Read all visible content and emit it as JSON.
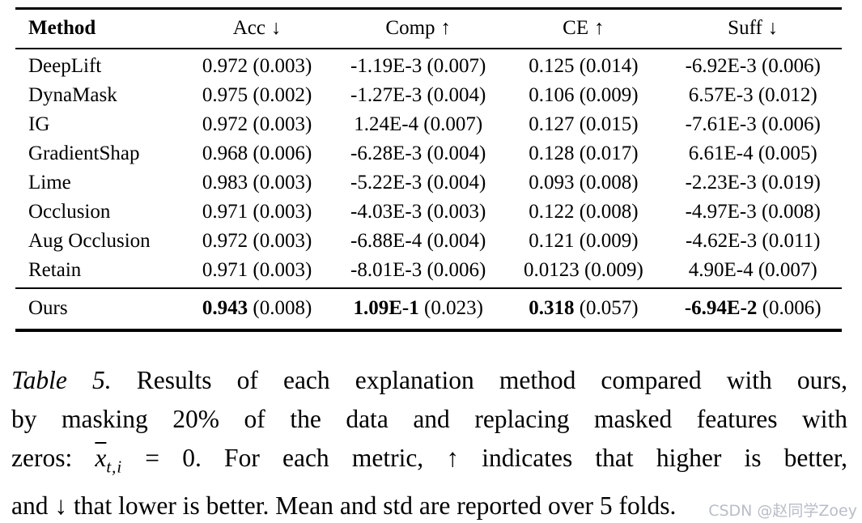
{
  "table": {
    "header": {
      "method": "Method",
      "cols": [
        {
          "label": "Acc",
          "arrow": "↓"
        },
        {
          "label": "Comp",
          "arrow": "↑"
        },
        {
          "label": "CE",
          "arrow": "↑"
        },
        {
          "label": "Suff",
          "arrow": "↓"
        }
      ]
    },
    "rows": [
      {
        "method": "DeepLift",
        "acc": "0.972 (0.003)",
        "comp": "-1.19E-3 (0.007)",
        "ce": "0.125 (0.014)",
        "suff": "-6.92E-3 (0.006)"
      },
      {
        "method": "DynaMask",
        "acc": "0.975 (0.002)",
        "comp": "-1.27E-3 (0.004)",
        "ce": "0.106 (0.009)",
        "suff": "6.57E-3 (0.012)"
      },
      {
        "method": "IG",
        "acc": "0.972 (0.003)",
        "comp": "1.24E-4 (0.007)",
        "ce": "0.127 (0.015)",
        "suff": "-7.61E-3 (0.006)"
      },
      {
        "method": "GradientShap",
        "acc": "0.968 (0.006)",
        "comp": "-6.28E-3 (0.004)",
        "ce": "0.128 (0.017)",
        "suff": "6.61E-4 (0.005)"
      },
      {
        "method": "Lime",
        "acc": "0.983 (0.003)",
        "comp": "-5.22E-3 (0.004)",
        "ce": "0.093 (0.008)",
        "suff": "-2.23E-3 (0.019)"
      },
      {
        "method": "Occlusion",
        "acc": "0.971 (0.003)",
        "comp": "-4.03E-3 (0.003)",
        "ce": "0.122 (0.008)",
        "suff": "-4.97E-3 (0.008)"
      },
      {
        "method": "Aug Occlusion",
        "acc": "0.972 (0.003)",
        "comp": "-6.88E-4 (0.004)",
        "ce": "0.121 (0.009)",
        "suff": "-4.62E-3 (0.011)"
      },
      {
        "method": "Retain",
        "acc": "0.971 (0.003)",
        "comp": "-8.01E-3 (0.006)",
        "ce": "0.0123 (0.009)",
        "suff": "4.90E-4 (0.007)"
      }
    ],
    "ours": {
      "method": "Ours",
      "acc": {
        "mean": "0.943",
        "std": "(0.008)"
      },
      "comp": {
        "mean": "1.09E-1",
        "std": "(0.023)"
      },
      "ce": {
        "mean": "0.318",
        "std": "(0.057)"
      },
      "suff": {
        "mean": "-6.94E-2",
        "std": "(0.006)"
      }
    }
  },
  "caption": {
    "line1_label": "Table 5.",
    "line1_text": " Results of each explanation method compared with ours,",
    "line2": "by masking 20% of the data and replacing masked features with",
    "line3_pre": "zeros: ",
    "line3_math_x": "x",
    "line3_math_sub": "t,i",
    "line3_post": " = 0. For each metric, ↑ indicates that higher is better,",
    "line4": "and ↓ that lower is better. Mean and std are reported over 5 folds."
  },
  "watermark": {
    "text": "CSDN @赵同学Zoey",
    "color": "#b9bdc8"
  }
}
